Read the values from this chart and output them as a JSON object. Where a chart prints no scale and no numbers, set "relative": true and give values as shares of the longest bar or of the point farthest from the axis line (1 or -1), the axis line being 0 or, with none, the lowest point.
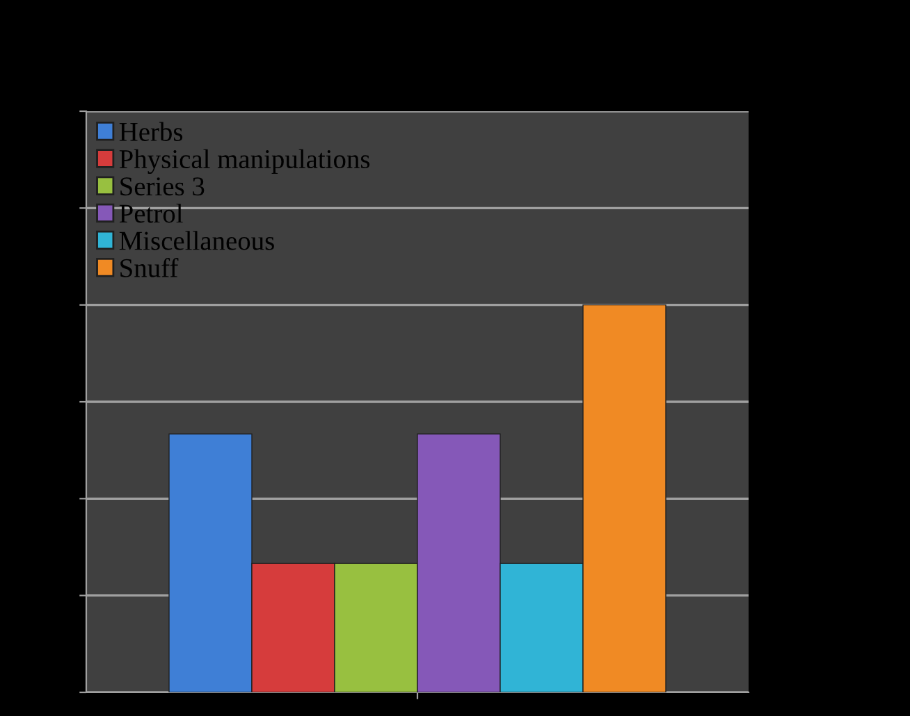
{
  "chart_data": {
    "type": "bar",
    "relative": true,
    "categories": [
      null
    ],
    "series": [
      {
        "name": "Herbs",
        "color": "#3f7fd6",
        "values": [
          0.667
        ]
      },
      {
        "name": "Physical manipulations",
        "color": "#d63c3c",
        "values": [
          0.333
        ]
      },
      {
        "name": "Series 3",
        "color": "#98c040",
        "values": [
          0.333
        ]
      },
      {
        "name": "Petrol",
        "color": "#8558b8",
        "values": [
          0.667
        ]
      },
      {
        "name": "Miscellaneous",
        "color": "#30b4d6",
        "values": [
          0.333
        ]
      },
      {
        "name": "Snuff",
        "color": "#f08a24",
        "values": [
          1
        ]
      }
    ],
    "grid": "y",
    "legend": "top left"
  }
}
